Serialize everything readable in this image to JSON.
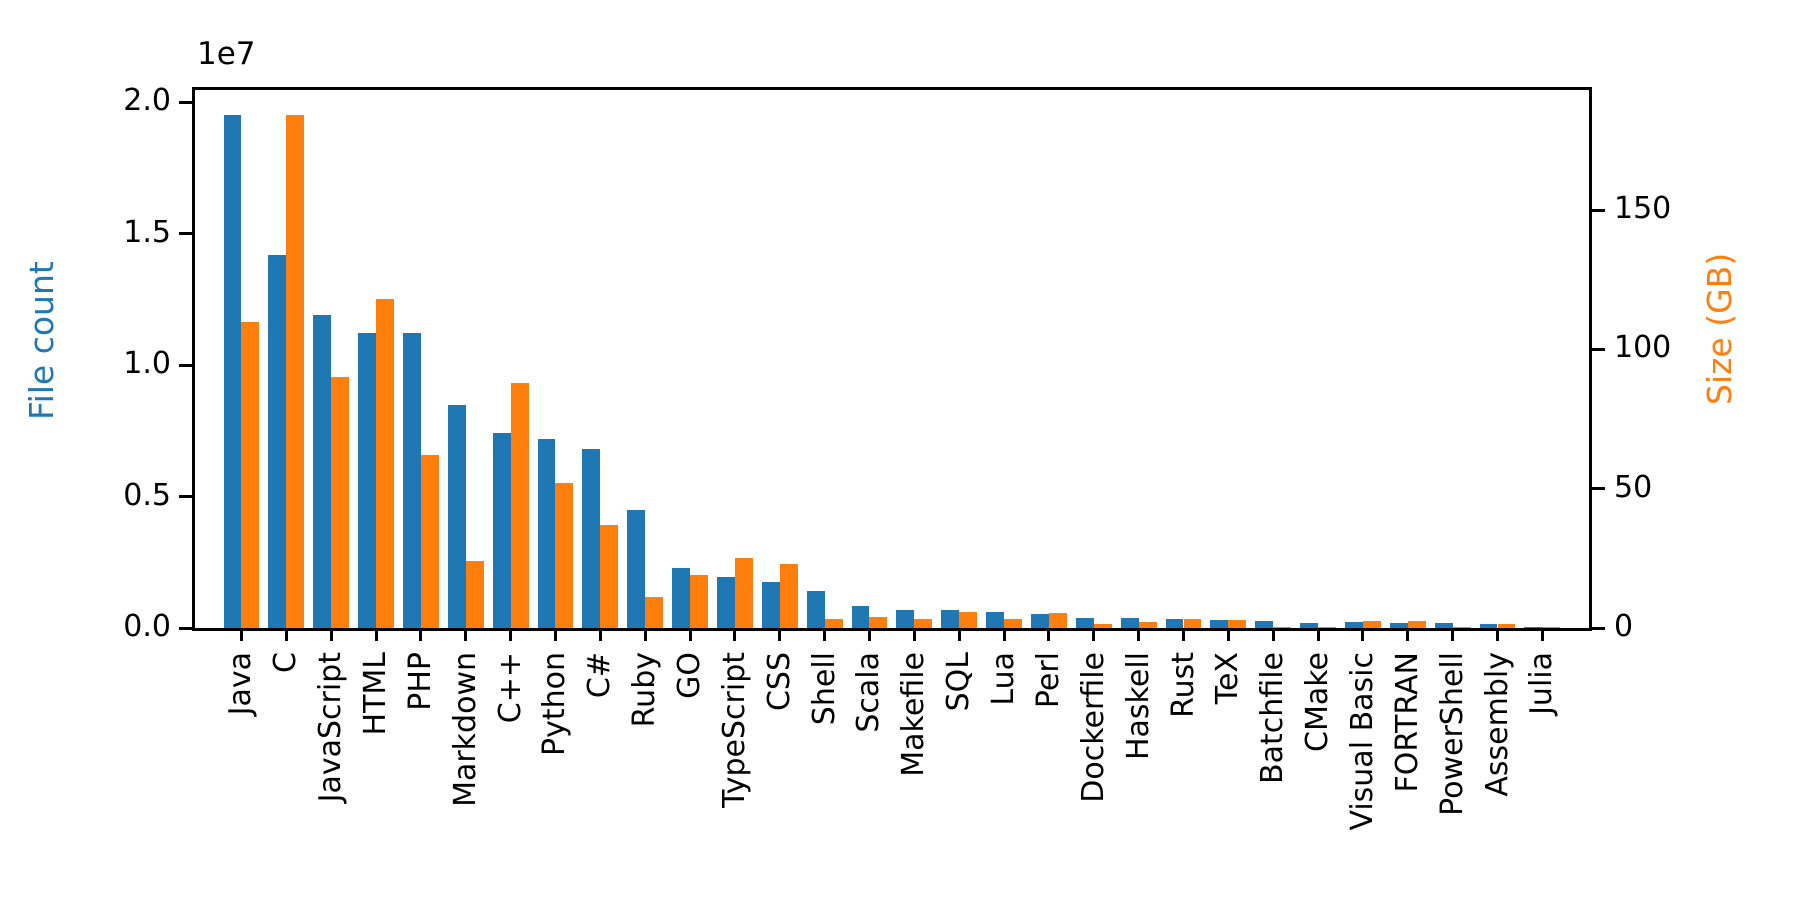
{
  "chart_data": {
    "type": "bar",
    "title": "",
    "categories": [
      "Java",
      "C",
      "JavaScript",
      "HTML",
      "PHP",
      "Markdown",
      "C++",
      "Python",
      "C#",
      "Ruby",
      "GO",
      "TypeScript",
      "CSS",
      "Shell",
      "Scala",
      "Makefile",
      "SQL",
      "Lua",
      "Perl",
      "Dockerfile",
      "Haskell",
      "Rust",
      "TeX",
      "Batchfile",
      "CMake",
      "Visual Basic",
      "FORTRAN",
      "PowerShell",
      "Assembly",
      "Julia"
    ],
    "series": [
      {
        "name": "File count",
        "axis": "left",
        "color": "#1f77b4",
        "values": [
          19500000,
          14200000,
          11900000,
          11200000,
          11200000,
          8500000,
          7400000,
          7200000,
          6800000,
          4500000,
          2300000,
          1950000,
          1750000,
          1400000,
          850000,
          690000,
          680000,
          600000,
          550000,
          400000,
          370000,
          340000,
          300000,
          280000,
          190000,
          220000,
          190000,
          190000,
          150000,
          50000
        ]
      },
      {
        "name": "Size (GB)",
        "axis": "right",
        "color": "#ff7f0e",
        "values": [
          110,
          184,
          90,
          118,
          62,
          24,
          88,
          52,
          37,
          11,
          19,
          25,
          23,
          3.2,
          4,
          3.2,
          5.7,
          3.3,
          5.4,
          1.4,
          2.2,
          3.2,
          3,
          0.3,
          0.3,
          2.5,
          2.5,
          0.4,
          1.4,
          0.3
        ]
      }
    ],
    "left_axis": {
      "label": "File count",
      "color": "#1f77b4",
      "offset_text": "1e7",
      "tick_values": [
        0,
        5000000,
        10000000,
        15000000,
        20000000
      ],
      "tick_labels": [
        "0.0",
        "0.5",
        "1.0",
        "1.5",
        "2.0"
      ],
      "ylim": [
        0,
        20460000
      ]
    },
    "right_axis": {
      "label": "Size (GB)",
      "color": "#ff7f0e",
      "tick_values": [
        0,
        50,
        100,
        150
      ],
      "tick_labels": [
        "0",
        "50",
        "100",
        "150"
      ],
      "ylim": [
        0,
        193
      ]
    },
    "grid": false,
    "legend": "none"
  }
}
